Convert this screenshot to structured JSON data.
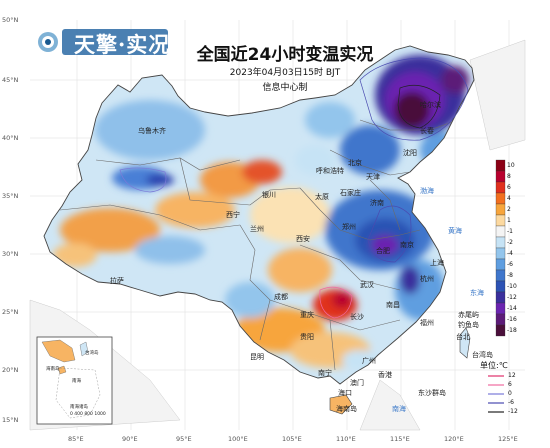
{
  "title": "全国近24小时变温实况",
  "subtitle": "2023年04月03日15时 BJT",
  "source": "信息中心制",
  "logo": {
    "text": "天擎·实况"
  },
  "lat_ticks": [
    "50°N",
    "45°N",
    "40°N",
    "35°N",
    "30°N",
    "25°N",
    "20°N",
    "15°N"
  ],
  "lon_ticks": [
    "85°E",
    "90°E",
    "95°E",
    "100°E",
    "105°E",
    "110°E",
    "115°E",
    "120°E",
    "125°E"
  ],
  "colorbar": {
    "labels": [
      "10",
      "8",
      "6",
      "4",
      "2",
      "1",
      "-1",
      "-2",
      "-4",
      "-6",
      "-8",
      "-10",
      "-12",
      "-14",
      "-16",
      "-18"
    ],
    "colors": [
      "#8b0015",
      "#b8002e",
      "#e0301e",
      "#f26f1f",
      "#f7a53c",
      "#fcd9a0",
      "#f4f4f4",
      "#c6e3f5",
      "#93c5ec",
      "#5f9ee0",
      "#3f76cc",
      "#2c52b4",
      "#3a2f9c",
      "#6a24b0",
      "#5c1a78",
      "#4a0f3a"
    ]
  },
  "unit": "单位:℃",
  "contour_legend": [
    {
      "label": "12",
      "color": "#e0306a"
    },
    {
      "label": "6",
      "color": "#f06aa0"
    },
    {
      "label": "0",
      "color": "#7a7ad8"
    },
    {
      "label": "-6",
      "color": "#4a4ab0"
    },
    {
      "label": "-12",
      "color": "#222222"
    }
  ],
  "places": [
    {
      "name": "乌鲁木齐",
      "kind": "city"
    },
    {
      "name": "哈尔滨",
      "kind": "city"
    },
    {
      "name": "长春",
      "kind": "city"
    },
    {
      "name": "沈阳",
      "kind": "city"
    },
    {
      "name": "呼和浩特",
      "kind": "city"
    },
    {
      "name": "北京",
      "kind": "city"
    },
    {
      "name": "天津",
      "kind": "city"
    },
    {
      "name": "石家庄",
      "kind": "city"
    },
    {
      "name": "太原",
      "kind": "city"
    },
    {
      "name": "济南",
      "kind": "city"
    },
    {
      "name": "银川",
      "kind": "city"
    },
    {
      "name": "西宁",
      "kind": "city"
    },
    {
      "name": "兰州",
      "kind": "city"
    },
    {
      "name": "郑州",
      "kind": "city"
    },
    {
      "name": "西安",
      "kind": "city"
    },
    {
      "name": "合肥",
      "kind": "city"
    },
    {
      "name": "南京",
      "kind": "city"
    },
    {
      "name": "上海",
      "kind": "city"
    },
    {
      "name": "拉萨",
      "kind": "city"
    },
    {
      "name": "成都",
      "kind": "city"
    },
    {
      "name": "武汉",
      "kind": "city"
    },
    {
      "name": "杭州",
      "kind": "city"
    },
    {
      "name": "重庆",
      "kind": "city"
    },
    {
      "name": "长沙",
      "kind": "city"
    },
    {
      "name": "南昌",
      "kind": "city"
    },
    {
      "name": "贵阳",
      "kind": "city"
    },
    {
      "name": "福州",
      "kind": "city"
    },
    {
      "name": "台北",
      "kind": "city"
    },
    {
      "name": "昆明",
      "kind": "city"
    },
    {
      "name": "南宁",
      "kind": "city"
    },
    {
      "name": "广州",
      "kind": "city"
    },
    {
      "name": "香港",
      "kind": "city"
    },
    {
      "name": "澳门",
      "kind": "city"
    },
    {
      "name": "海口",
      "kind": "city"
    },
    {
      "name": "海南岛",
      "kind": "island"
    },
    {
      "name": "渤海",
      "kind": "sea"
    },
    {
      "name": "黄海",
      "kind": "sea"
    },
    {
      "name": "东海",
      "kind": "sea"
    },
    {
      "name": "南海",
      "kind": "sea"
    },
    {
      "name": "赤尾屿",
      "kind": "island"
    },
    {
      "name": "钓鱼岛",
      "kind": "island"
    },
    {
      "name": "东沙群岛",
      "kind": "island"
    },
    {
      "name": "台湾岛",
      "kind": "island"
    }
  ],
  "inset": {
    "labels": [
      "台湾岛",
      "海南岛",
      "南海",
      "南海诸岛"
    ],
    "scale": "0  400 800 1000"
  }
}
